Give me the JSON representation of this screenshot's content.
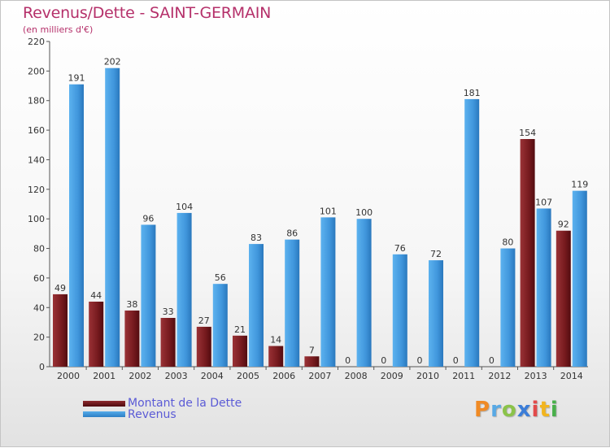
{
  "title": "Revenus/Dette - SAINT-GERMAIN",
  "subtitle": "(en milliers d'€)",
  "logo": [
    "P",
    "r",
    "o",
    "x",
    "i",
    "t",
    "i"
  ],
  "colors": {
    "dette": "#7a1a1e",
    "revenus": "#3f97dd",
    "axis_text": "#333333",
    "grid": "#dddddd",
    "title": "#b5306a",
    "legend_text": "#5b5bd6"
  },
  "chart_data": {
    "type": "bar",
    "title": "Revenus/Dette - SAINT-GERMAIN",
    "subtitle": "(en milliers d'€)",
    "categories": [
      "2000",
      "2001",
      "2002",
      "2003",
      "2004",
      "2005",
      "2006",
      "2007",
      "2008",
      "2009",
      "2010",
      "2011",
      "2012",
      "2013",
      "2014"
    ],
    "series": [
      {
        "name": "Montant de la Dette",
        "values": [
          49,
          44,
          38,
          33,
          27,
          21,
          14,
          7,
          0,
          0,
          0,
          0,
          0,
          154,
          92
        ]
      },
      {
        "name": "Revenus",
        "values": [
          191,
          202,
          96,
          104,
          56,
          83,
          86,
          101,
          100,
          76,
          72,
          181,
          80,
          107,
          119
        ]
      }
    ],
    "ylim": [
      0,
      220
    ],
    "yticks": [
      0,
      20,
      40,
      60,
      80,
      100,
      120,
      140,
      160,
      180,
      200,
      220
    ],
    "grid": false,
    "legend_position": "bottom-left"
  }
}
